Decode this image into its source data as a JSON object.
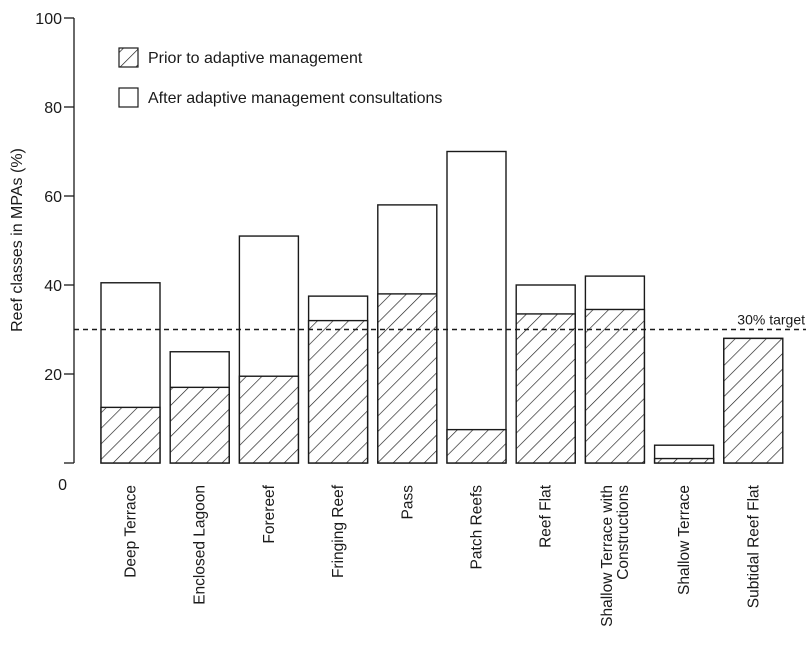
{
  "chart_data": {
    "type": "bar",
    "stacked": true,
    "ylabel": "Reef classes in MPAs (%)",
    "xlabel": "",
    "ylim": [
      0,
      100
    ],
    "yticks": [
      "0",
      "20",
      "40",
      "60",
      "80",
      "100"
    ],
    "categories": [
      "Deep Terrace",
      "Enclosed Lagoon",
      "Forereef",
      "Fringing Reef",
      "Pass",
      "Patch Reefs",
      "Reef Flat",
      "Shallow Terrace with Constructions",
      "Shallow Terrace",
      "Subtidal Reef Flat"
    ],
    "series": [
      {
        "name": "Prior to adaptive management",
        "pattern": "hatched",
        "values": [
          12.5,
          17,
          19.5,
          32,
          38,
          7.5,
          33.5,
          34.5,
          1,
          28
        ]
      },
      {
        "name": "After adaptive management consultations",
        "pattern": "open",
        "values": [
          40.5,
          25,
          51,
          37.5,
          58,
          70,
          40,
          42,
          4,
          28
        ]
      }
    ],
    "reference_line": {
      "value": 30,
      "label": "30% target",
      "style": "dashed"
    },
    "legend": "top-left",
    "grid": false
  }
}
